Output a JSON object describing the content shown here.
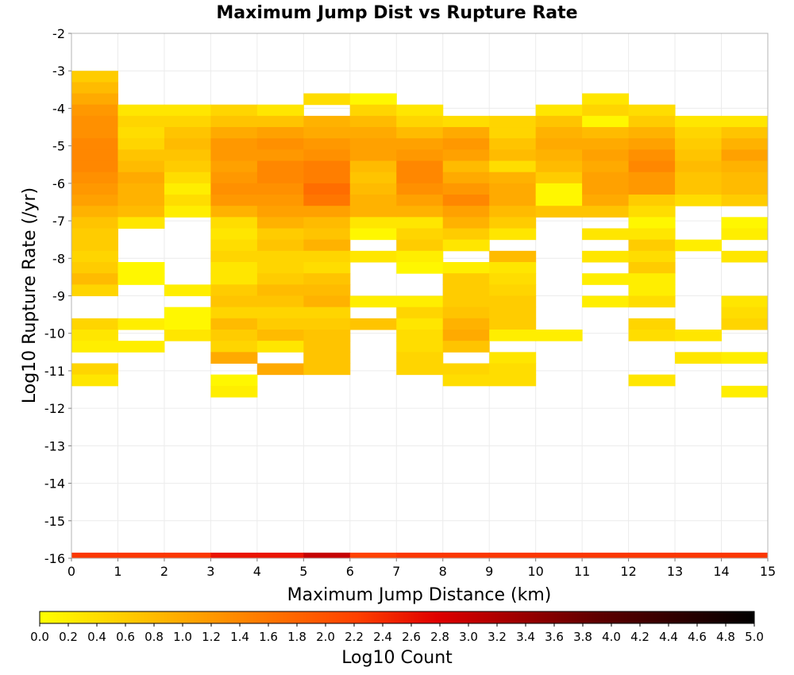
{
  "chart_data": {
    "type": "heatmap",
    "title": "Maximum Jump Dist vs Rupture Rate",
    "xlabel": "Maximum Jump Distance (km)",
    "ylabel": "Log10 Rupture Rate (/yr)",
    "colorbar_label": "Log10 Count",
    "xlim": [
      0,
      15
    ],
    "ylim": [
      -16,
      -2
    ],
    "clim": [
      0,
      5
    ],
    "x_ticks": [
      0,
      1,
      2,
      3,
      4,
      5,
      6,
      7,
      8,
      9,
      10,
      11,
      12,
      13,
      14,
      15
    ],
    "y_ticks": [
      -16,
      -15,
      -14,
      -13,
      -12,
      -11,
      -10,
      -9,
      -8,
      -7,
      -6,
      -5,
      -4,
      -3,
      -2
    ],
    "colorbar_ticks": [
      "0.0",
      "0.2",
      "0.4",
      "0.6",
      "0.8",
      "1.0",
      "1.2",
      "1.4",
      "1.6",
      "1.8",
      "2.0",
      "2.2",
      "2.4",
      "2.6",
      "2.8",
      "3.0",
      "3.2",
      "3.4",
      "3.6",
      "3.8",
      "4.0",
      "4.2",
      "4.4",
      "4.6",
      "4.8",
      "5.0"
    ],
    "colormap": [
      "#ffff00",
      "#ffd000",
      "#ffa000",
      "#ff7000",
      "#ff4000",
      "#e00000",
      "#a00000",
      "#600000",
      "#300000",
      "#000000"
    ],
    "grid": true,
    "colorbar_position": "bottom",
    "columns": [
      {
        "x": 0,
        "cells": [
          [
            -3.0,
            0.6
          ],
          [
            -3.3,
            0.8
          ],
          [
            -3.6,
            1.0
          ],
          [
            -3.9,
            1.2
          ],
          [
            -4.2,
            1.3
          ],
          [
            -4.5,
            1.3
          ],
          [
            -4.8,
            1.4
          ],
          [
            -5.1,
            1.4
          ],
          [
            -5.4,
            1.4
          ],
          [
            -5.7,
            1.3
          ],
          [
            -6.0,
            1.2
          ],
          [
            -6.3,
            1.1
          ],
          [
            -6.6,
            0.9
          ],
          [
            -6.9,
            0.7
          ],
          [
            -7.2,
            0.6
          ],
          [
            -7.5,
            0.6
          ],
          [
            -7.8,
            0.5
          ],
          [
            -8.1,
            0.6
          ],
          [
            -8.4,
            0.8
          ],
          [
            -8.7,
            0.5
          ],
          [
            -9.6,
            0.5
          ],
          [
            -9.9,
            0.3
          ],
          [
            -10.2,
            0.2
          ],
          [
            -10.8,
            0.5
          ],
          [
            -11.1,
            0.3
          ]
        ],
        "bottom": 2.3
      },
      {
        "x": 1,
        "cells": [
          [
            -3.9,
            0.3
          ],
          [
            -4.2,
            0.5
          ],
          [
            -4.5,
            0.4
          ],
          [
            -4.8,
            0.5
          ],
          [
            -5.1,
            0.7
          ],
          [
            -5.4,
            0.8
          ],
          [
            -5.7,
            1.0
          ],
          [
            -6.0,
            0.9
          ],
          [
            -6.3,
            0.9
          ],
          [
            -6.6,
            0.8
          ],
          [
            -6.9,
            0.3
          ],
          [
            -8.1,
            0.1
          ],
          [
            -8.4,
            0.1
          ],
          [
            -9.6,
            0.2
          ],
          [
            -10.2,
            0.2
          ]
        ],
        "bottom": 2.3
      },
      {
        "x": 2,
        "cells": [
          [
            -3.9,
            0.3
          ],
          [
            -4.2,
            0.5
          ],
          [
            -4.5,
            0.7
          ],
          [
            -4.8,
            0.8
          ],
          [
            -5.1,
            0.7
          ],
          [
            -5.4,
            0.6
          ],
          [
            -5.7,
            0.4
          ],
          [
            -6.0,
            0.2
          ],
          [
            -6.3,
            0.4
          ],
          [
            -6.6,
            0.2
          ],
          [
            -8.7,
            0.2
          ],
          [
            -9.3,
            0.1
          ],
          [
            -9.6,
            0.1
          ],
          [
            -9.9,
            0.3
          ]
        ],
        "bottom": 2.3
      },
      {
        "x": 3,
        "cells": [
          [
            -3.9,
            0.5
          ],
          [
            -4.2,
            0.7
          ],
          [
            -4.5,
            1.0
          ],
          [
            -4.8,
            1.2
          ],
          [
            -5.1,
            1.2
          ],
          [
            -5.4,
            1.1
          ],
          [
            -5.7,
            1.2
          ],
          [
            -6.0,
            1.3
          ],
          [
            -6.3,
            1.2
          ],
          [
            -6.6,
            0.9
          ],
          [
            -6.9,
            0.4
          ],
          [
            -7.2,
            0.3
          ],
          [
            -7.5,
            0.4
          ],
          [
            -7.8,
            0.5
          ],
          [
            -8.1,
            0.3
          ],
          [
            -8.4,
            0.3
          ],
          [
            -8.7,
            0.6
          ],
          [
            -9.0,
            0.7
          ],
          [
            -9.3,
            0.5
          ],
          [
            -9.6,
            0.8
          ],
          [
            -9.9,
            0.6
          ],
          [
            -10.2,
            0.5
          ],
          [
            -10.5,
            1.0
          ],
          [
            -11.1,
            0.1
          ],
          [
            -11.4,
            0.2
          ]
        ],
        "bottom": 2.6
      },
      {
        "x": 4,
        "cells": [
          [
            -3.9,
            0.3
          ],
          [
            -4.2,
            0.7
          ],
          [
            -4.5,
            1.1
          ],
          [
            -4.8,
            1.3
          ],
          [
            -5.1,
            1.2
          ],
          [
            -5.4,
            1.4
          ],
          [
            -5.7,
            1.4
          ],
          [
            -6.0,
            1.3
          ],
          [
            -6.3,
            1.2
          ],
          [
            -6.6,
            1.1
          ],
          [
            -6.9,
            0.9
          ],
          [
            -7.2,
            0.6
          ],
          [
            -7.5,
            0.7
          ],
          [
            -7.8,
            0.5
          ],
          [
            -8.1,
            0.5
          ],
          [
            -8.4,
            0.6
          ],
          [
            -8.7,
            0.8
          ],
          [
            -9.0,
            0.7
          ],
          [
            -9.3,
            0.5
          ],
          [
            -9.6,
            0.6
          ],
          [
            -9.9,
            0.8
          ],
          [
            -10.2,
            0.3
          ],
          [
            -10.8,
            1.0
          ]
        ],
        "bottom": 2.6
      },
      {
        "x": 5,
        "cells": [
          [
            -3.6,
            0.4
          ],
          [
            -4.2,
            0.9
          ],
          [
            -4.5,
            1.0
          ],
          [
            -4.8,
            1.2
          ],
          [
            -5.1,
            1.3
          ],
          [
            -5.4,
            1.5
          ],
          [
            -5.7,
            1.5
          ],
          [
            -6.0,
            1.7
          ],
          [
            -6.3,
            1.6
          ],
          [
            -6.6,
            1.1
          ],
          [
            -6.9,
            0.8
          ],
          [
            -7.2,
            0.7
          ],
          [
            -7.5,
            0.9
          ],
          [
            -7.8,
            0.5
          ],
          [
            -8.1,
            0.4
          ],
          [
            -8.4,
            0.7
          ],
          [
            -8.7,
            0.8
          ],
          [
            -9.0,
            0.9
          ],
          [
            -9.3,
            0.5
          ],
          [
            -9.6,
            0.6
          ],
          [
            -9.9,
            0.7
          ],
          [
            -10.2,
            0.7
          ],
          [
            -10.5,
            0.7
          ],
          [
            -10.8,
            0.7
          ]
        ],
        "bottom": 3.0
      },
      {
        "x": 6,
        "cells": [
          [
            -3.6,
            0.1
          ],
          [
            -3.9,
            0.5
          ],
          [
            -4.2,
            0.8
          ],
          [
            -4.5,
            1.0
          ],
          [
            -4.8,
            1.1
          ],
          [
            -5.1,
            1.1
          ],
          [
            -5.4,
            0.8
          ],
          [
            -5.7,
            0.7
          ],
          [
            -6.0,
            0.8
          ],
          [
            -6.3,
            0.9
          ],
          [
            -6.6,
            0.9
          ],
          [
            -6.9,
            0.3
          ],
          [
            -7.2,
            0.1
          ],
          [
            -7.8,
            0.3
          ],
          [
            -9.0,
            0.2
          ],
          [
            -9.6,
            0.7
          ]
        ],
        "bottom": 2.2
      },
      {
        "x": 7,
        "cells": [
          [
            -3.9,
            0.3
          ],
          [
            -4.2,
            0.5
          ],
          [
            -4.5,
            0.8
          ],
          [
            -4.8,
            1.1
          ],
          [
            -5.1,
            1.2
          ],
          [
            -5.4,
            1.4
          ],
          [
            -5.7,
            1.4
          ],
          [
            -6.0,
            1.3
          ],
          [
            -6.3,
            1.1
          ],
          [
            -6.6,
            0.9
          ],
          [
            -6.9,
            0.3
          ],
          [
            -7.2,
            0.5
          ],
          [
            -7.5,
            0.6
          ],
          [
            -7.8,
            0.2
          ],
          [
            -8.1,
            0.1
          ],
          [
            -9.0,
            0.2
          ],
          [
            -9.3,
            0.5
          ],
          [
            -9.6,
            0.3
          ],
          [
            -9.9,
            0.4
          ],
          [
            -10.2,
            0.4
          ],
          [
            -10.5,
            0.5
          ],
          [
            -10.8,
            0.5
          ]
        ],
        "bottom": 2.3
      },
      {
        "x": 8,
        "cells": [
          [
            -4.2,
            0.4
          ],
          [
            -4.5,
            1.0
          ],
          [
            -4.8,
            1.2
          ],
          [
            -5.1,
            1.1
          ],
          [
            -5.4,
            0.8
          ],
          [
            -5.7,
            1.0
          ],
          [
            -6.0,
            1.2
          ],
          [
            -6.3,
            1.4
          ],
          [
            -6.6,
            1.1
          ],
          [
            -6.9,
            0.9
          ],
          [
            -7.2,
            0.6
          ],
          [
            -7.5,
            0.3
          ],
          [
            -8.1,
            0.2
          ],
          [
            -8.4,
            0.6
          ],
          [
            -8.7,
            0.6
          ],
          [
            -9.0,
            0.6
          ],
          [
            -9.3,
            0.7
          ],
          [
            -9.6,
            0.9
          ],
          [
            -9.9,
            1.0
          ],
          [
            -10.2,
            0.7
          ],
          [
            -10.8,
            0.5
          ],
          [
            -11.1,
            0.4
          ]
        ],
        "bottom": 2.3
      },
      {
        "x": 9,
        "cells": [
          [
            -4.2,
            0.5
          ],
          [
            -4.5,
            0.5
          ],
          [
            -4.8,
            0.7
          ],
          [
            -5.1,
            0.8
          ],
          [
            -5.4,
            0.4
          ],
          [
            -5.7,
            0.9
          ],
          [
            -6.0,
            1.0
          ],
          [
            -6.3,
            1.0
          ],
          [
            -6.6,
            0.8
          ],
          [
            -6.9,
            0.6
          ],
          [
            -7.2,
            0.3
          ],
          [
            -7.8,
            0.8
          ],
          [
            -8.1,
            0.3
          ],
          [
            -8.4,
            0.4
          ],
          [
            -8.7,
            0.5
          ],
          [
            -9.0,
            0.6
          ],
          [
            -9.3,
            0.6
          ],
          [
            -9.6,
            0.6
          ],
          [
            -9.9,
            0.2
          ],
          [
            -10.5,
            0.3
          ],
          [
            -10.8,
            0.4
          ],
          [
            -11.1,
            0.4
          ]
        ],
        "bottom": 2.3
      },
      {
        "x": 10,
        "cells": [
          [
            -3.9,
            0.3
          ],
          [
            -4.2,
            0.7
          ],
          [
            -4.5,
            0.9
          ],
          [
            -4.8,
            1.0
          ],
          [
            -5.1,
            0.9
          ],
          [
            -5.4,
            0.8
          ],
          [
            -5.7,
            0.6
          ],
          [
            -6.0,
            0.1
          ],
          [
            -6.3,
            0.1
          ],
          [
            -6.6,
            0.7
          ],
          [
            -9.9,
            0.2
          ]
        ],
        "bottom": 2.3
      },
      {
        "x": 11,
        "cells": [
          [
            -3.6,
            0.3
          ],
          [
            -3.9,
            0.5
          ],
          [
            -4.2,
            0.1
          ],
          [
            -4.5,
            0.8
          ],
          [
            -4.8,
            1.0
          ],
          [
            -5.1,
            1.1
          ],
          [
            -5.4,
            1.0
          ],
          [
            -5.7,
            1.1
          ],
          [
            -6.0,
            1.1
          ],
          [
            -6.3,
            1.0
          ],
          [
            -6.6,
            0.7
          ],
          [
            -7.2,
            0.3
          ],
          [
            -7.8,
            0.3
          ],
          [
            -8.4,
            0.2
          ],
          [
            -9.0,
            0.2
          ]
        ],
        "bottom": 2.3
      },
      {
        "x": 12,
        "cells": [
          [
            -3.9,
            0.4
          ],
          [
            -4.2,
            0.6
          ],
          [
            -4.5,
            0.9
          ],
          [
            -4.8,
            1.1
          ],
          [
            -5.1,
            1.3
          ],
          [
            -5.4,
            1.4
          ],
          [
            -5.7,
            1.2
          ],
          [
            -6.0,
            1.2
          ],
          [
            -6.3,
            0.6
          ],
          [
            -6.6,
            0.4
          ],
          [
            -6.9,
            0.1
          ],
          [
            -7.2,
            0.3
          ],
          [
            -7.5,
            0.6
          ],
          [
            -7.8,
            0.4
          ],
          [
            -8.1,
            0.6
          ],
          [
            -8.4,
            0.2
          ],
          [
            -8.7,
            0.2
          ],
          [
            -9.0,
            0.4
          ],
          [
            -9.6,
            0.5
          ],
          [
            -9.9,
            0.4
          ],
          [
            -11.1,
            0.3
          ]
        ],
        "bottom": 2.3
      },
      {
        "x": 13,
        "cells": [
          [
            -4.2,
            0.3
          ],
          [
            -4.5,
            0.5
          ],
          [
            -4.8,
            0.6
          ],
          [
            -5.1,
            0.7
          ],
          [
            -5.4,
            0.8
          ],
          [
            -5.7,
            0.7
          ],
          [
            -6.0,
            0.7
          ],
          [
            -6.3,
            0.4
          ],
          [
            -7.5,
            0.2
          ],
          [
            -9.9,
            0.3
          ],
          [
            -10.5,
            0.3
          ]
        ],
        "bottom": 2.3
      },
      {
        "x": 14,
        "cells": [
          [
            -4.2,
            0.3
          ],
          [
            -4.5,
            0.7
          ],
          [
            -4.8,
            0.9
          ],
          [
            -5.1,
            1.1
          ],
          [
            -5.4,
            0.9
          ],
          [
            -5.7,
            0.8
          ],
          [
            -6.0,
            0.8
          ],
          [
            -6.3,
            0.6
          ],
          [
            -6.9,
            0.1
          ],
          [
            -7.2,
            0.2
          ],
          [
            -7.8,
            0.3
          ],
          [
            -9.0,
            0.3
          ],
          [
            -9.3,
            0.4
          ],
          [
            -9.6,
            0.5
          ],
          [
            -10.5,
            0.2
          ],
          [
            -11.4,
            0.2
          ]
        ],
        "bottom": 2.3
      }
    ]
  }
}
